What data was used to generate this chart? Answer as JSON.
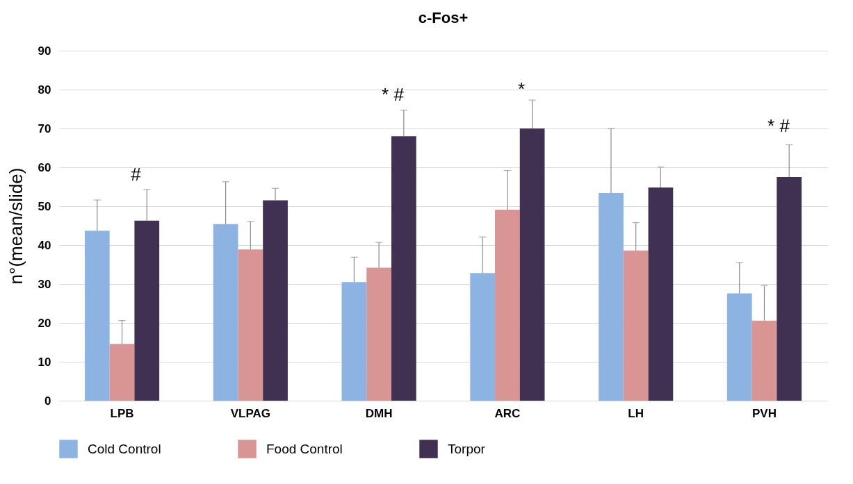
{
  "chart_data": {
    "type": "bar",
    "title": "c-Fos+",
    "ylabel": "n°(mean/slide)",
    "categories": [
      "LPB",
      "VLPAG",
      "DMH",
      "ARC",
      "LH",
      "PVH"
    ],
    "series": [
      {
        "name": "Cold Control",
        "color": "#8db3e2",
        "values": [
          43.7,
          45.4,
          30.5,
          32.8,
          53.4,
          27.6
        ],
        "errors": [
          [
            43.7,
            51.6
          ],
          [
            45.4,
            56.3
          ],
          [
            30.5,
            36.9
          ],
          [
            32.8,
            42.1
          ],
          [
            53.4,
            70.0
          ],
          [
            27.6,
            35.5
          ]
        ]
      },
      {
        "name": "Food Control",
        "color": "#d99594",
        "values": [
          14.6,
          38.9,
          34.2,
          49.1,
          38.6,
          20.6
        ],
        "errors": [
          [
            14.6,
            20.6
          ],
          [
            38.9,
            46.1
          ],
          [
            34.2,
            40.7
          ],
          [
            49.1,
            59.2
          ],
          [
            38.6,
            45.8
          ],
          [
            20.6,
            29.6
          ]
        ]
      },
      {
        "name": "Torpor",
        "color": "#403152",
        "values": [
          46.3,
          51.5,
          68.0,
          70.0,
          54.8,
          57.5
        ],
        "errors": [
          [
            46.3,
            54.3
          ],
          [
            51.5,
            54.6
          ],
          [
            68.0,
            74.7
          ],
          [
            70.0,
            77.3
          ],
          [
            54.8,
            60.1
          ],
          [
            57.5,
            65.8
          ]
        ]
      }
    ],
    "annotations": [
      "#",
      "*  #",
      "*",
      "*  #"
    ],
    "ylim": [
      0,
      90
    ],
    "yticks": [
      0,
      10,
      20,
      30,
      40,
      50,
      60,
      70,
      80,
      90
    ],
    "grid": "y",
    "legend": "bottom"
  }
}
